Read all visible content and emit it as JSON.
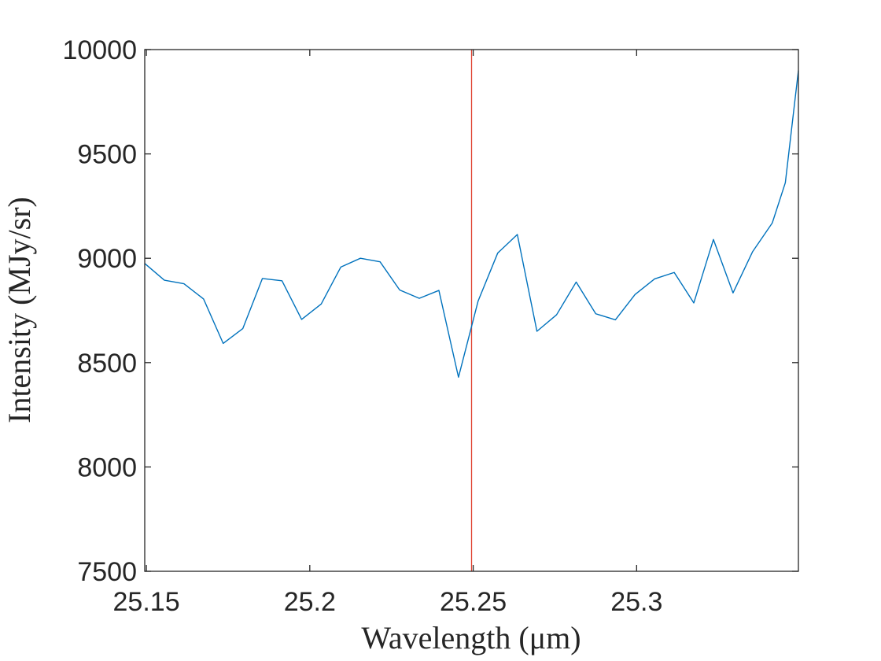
{
  "chart_data": {
    "type": "line",
    "xlabel": "Wavelength (μm)",
    "ylabel": "Intensity (MJy/sr)",
    "xlim": [
      25.1495,
      25.3495
    ],
    "ylim": [
      7500,
      10000
    ],
    "x_ticks": [
      25.15,
      25.2,
      25.25,
      25.3
    ],
    "x_tick_labels": [
      "25.15",
      "25.2",
      "25.25",
      "25.3"
    ],
    "y_ticks": [
      7500,
      8000,
      8500,
      9000,
      9500,
      10000
    ],
    "y_tick_labels": [
      "7500",
      "8000",
      "8500",
      "9000",
      "9500",
      "10000"
    ],
    "grid": false,
    "series": [
      {
        "color": "#0072BD",
        "x": [
          25.1495,
          25.1555,
          25.1615,
          25.1675,
          25.1735,
          25.1795,
          25.1855,
          25.1915,
          25.1975,
          25.2035,
          25.2095,
          25.2155,
          25.2215,
          25.2275,
          25.2335,
          25.2395,
          25.2455,
          25.2515,
          25.2575,
          25.2635,
          25.2695,
          25.2755,
          25.2815,
          25.2875,
          25.2935,
          25.2995,
          25.3055,
          25.3115,
          25.3175,
          25.3235,
          25.3295,
          25.3355,
          25.3415,
          25.3455,
          25.3495
        ],
        "y": [
          8975,
          8895,
          8878,
          8805,
          8592,
          8663,
          8903,
          8892,
          8707,
          8781,
          8958,
          9000,
          8983,
          8848,
          8808,
          8846,
          8430,
          8795,
          9025,
          9114,
          8650,
          8729,
          8886,
          8734,
          8705,
          8826,
          8901,
          8932,
          8786,
          9090,
          8834,
          9032,
          9169,
          9362,
          9900
        ]
      }
    ],
    "vlines": [
      {
        "x": 25.2495,
        "color": "#e0402e"
      }
    ]
  }
}
